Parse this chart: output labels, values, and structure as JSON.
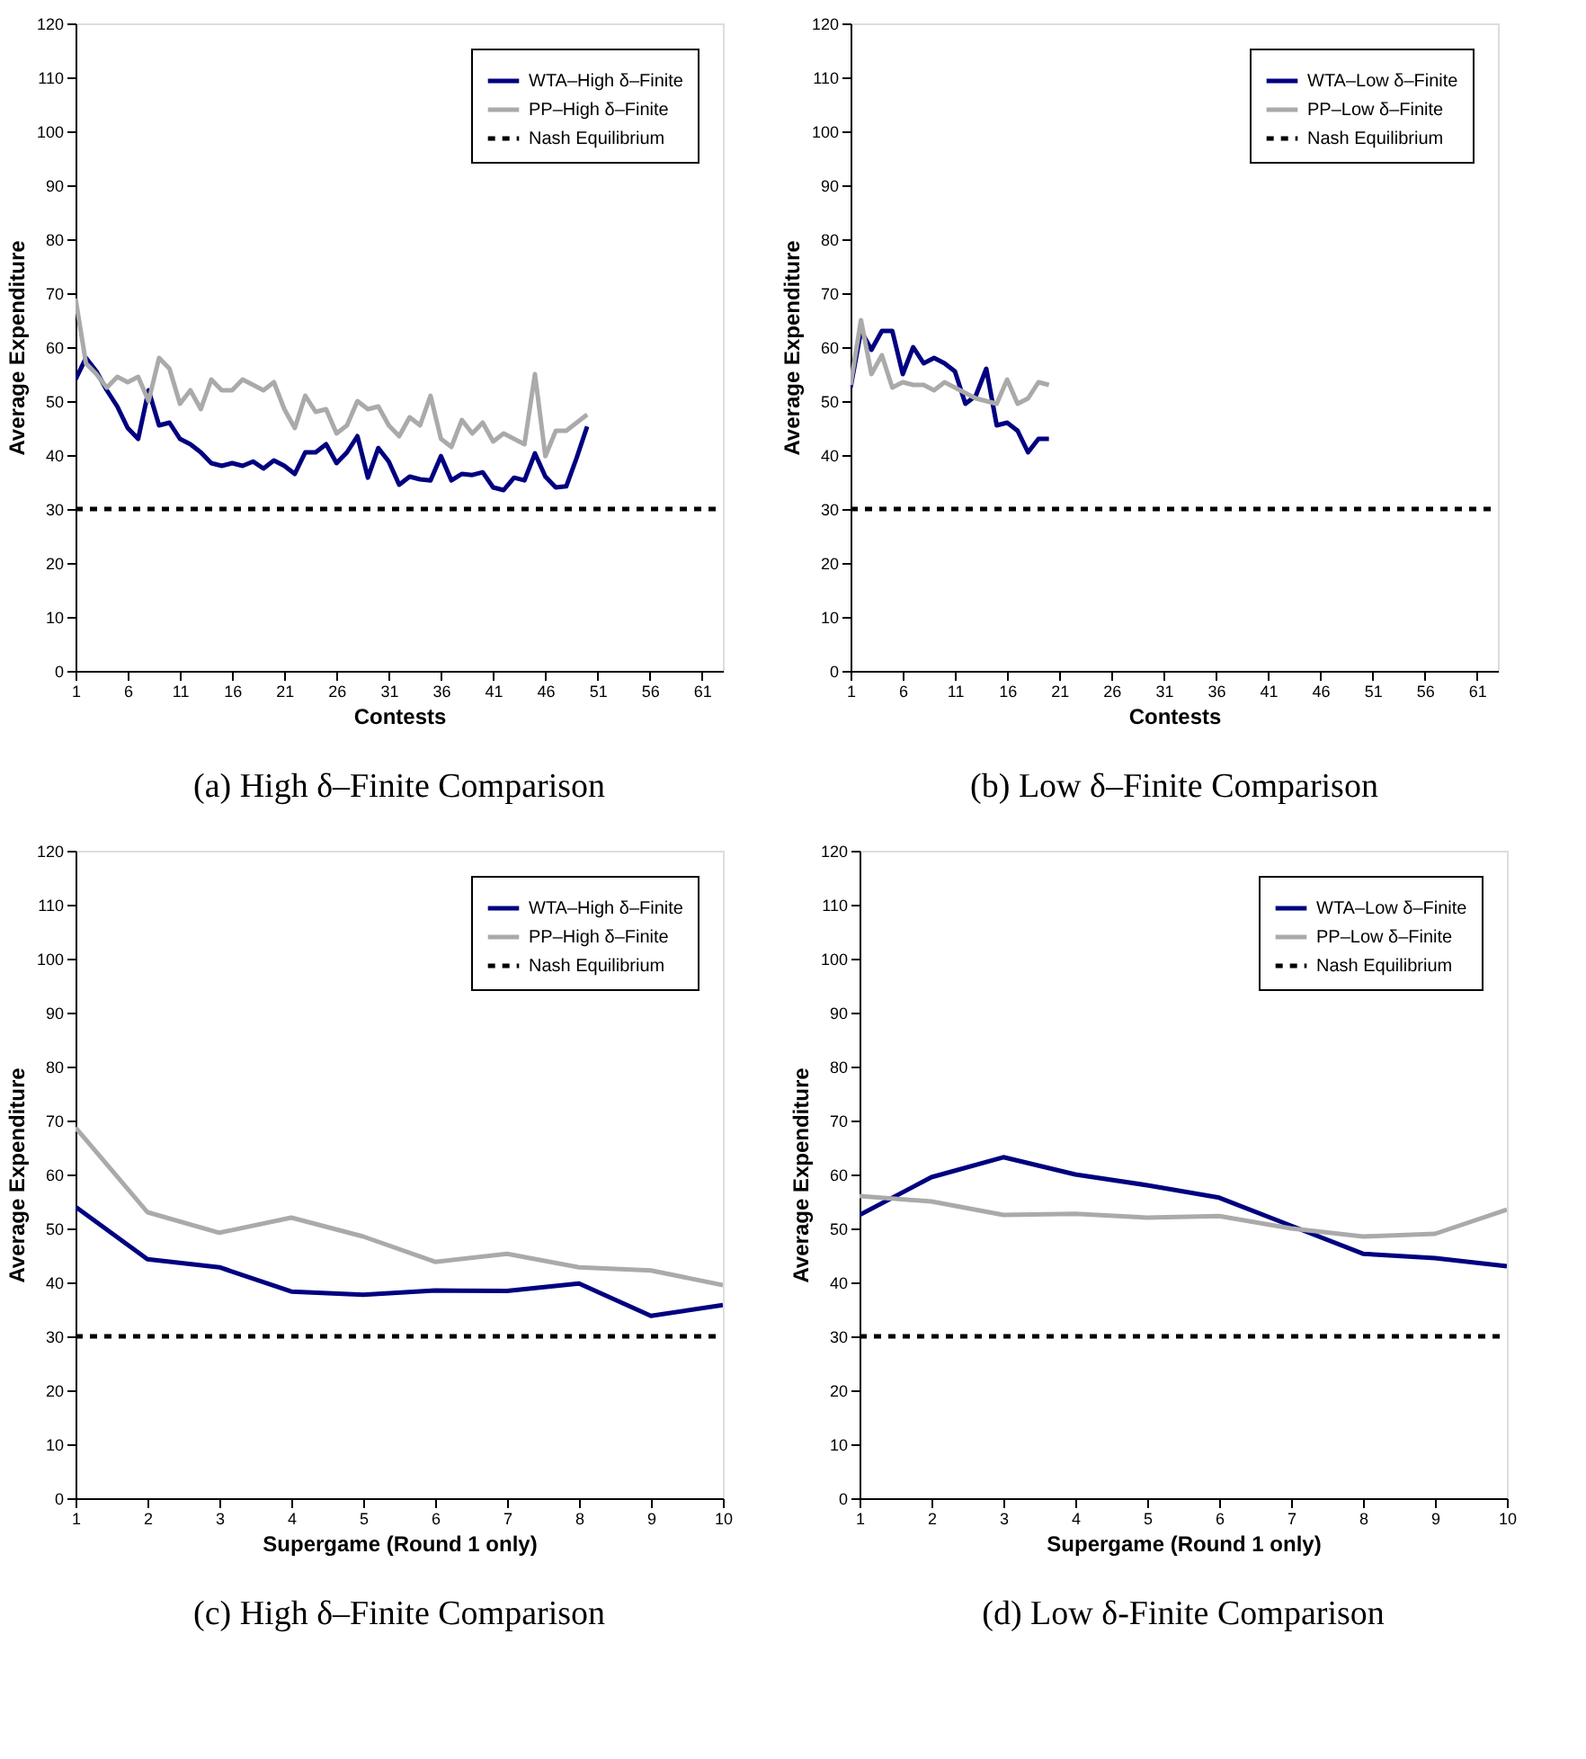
{
  "chart_data": [
    {
      "type": "line",
      "title": "(a) High δ–Finite Comparison",
      "xlabel": "Contests",
      "ylabel": "Average Expenditure",
      "legend": "top right",
      "x": [
        1,
        2,
        3,
        4,
        5,
        6,
        7,
        8,
        9,
        10,
        11,
        12,
        13,
        14,
        15,
        16,
        17,
        18,
        19,
        20,
        21,
        22,
        23,
        24,
        25,
        26,
        27,
        28,
        29,
        30,
        31,
        32,
        33,
        34,
        35,
        36,
        37,
        38,
        39,
        40,
        41,
        42,
        43,
        44,
        45,
        46,
        47,
        48,
        49,
        50
      ],
      "series": [
        {
          "name": "WTA–High δ–Finite",
          "color": "#000080",
          "values": [
            54,
            58,
            55.5,
            52,
            49,
            45,
            43,
            52,
            45.5,
            46,
            43,
            42,
            40.5,
            38.5,
            38,
            38.5,
            38,
            38.8,
            37.5,
            39,
            38,
            36.5,
            40.5,
            40.5,
            42,
            38.5,
            40.5,
            43.5,
            35.8,
            41.3,
            38.8,
            34.5,
            36,
            35.5,
            35.3,
            39.8,
            35.3,
            36.5,
            36.3,
            36.8,
            34,
            33.5,
            35.8,
            35.3,
            40.3,
            36,
            34,
            34.2,
            39.5,
            45.3
          ]
        },
        {
          "name": "PP–High δ–Finite",
          "color": "#aaaaaa",
          "values": [
            69,
            57,
            55,
            52.5,
            54.5,
            53.5,
            54.5,
            50,
            58,
            56,
            49.5,
            52,
            48.5,
            54,
            52,
            52,
            54,
            53,
            52,
            53.5,
            48.5,
            45,
            51,
            48,
            48.5,
            44,
            45.5,
            50,
            48.5,
            49,
            45.5,
            43.5,
            47,
            45.5,
            51,
            43,
            41.5,
            46.5,
            44,
            46,
            42.5,
            44,
            43,
            42,
            55,
            39.8,
            44.5,
            44.5,
            46,
            47.5
          ]
        }
      ],
      "ref_lines": [
        {
          "axis": "y",
          "value": 30,
          "label": "Nash Equilibrium",
          "color": "#000000",
          "line_style": "dashed"
        }
      ],
      "xlim": [
        1,
        63
      ],
      "xticks": [
        1,
        6,
        11,
        16,
        21,
        26,
        31,
        36,
        41,
        46,
        51,
        56,
        61
      ],
      "ylim": [
        0,
        120
      ],
      "yticks": [
        0,
        10,
        20,
        30,
        40,
        50,
        60,
        70,
        80,
        90,
        100,
        110,
        120
      ]
    },
    {
      "type": "line",
      "title": "(b) Low δ–Finite Comparison",
      "xlabel": "Contests",
      "ylabel": "Average Expenditure",
      "legend": "top right",
      "x": [
        1,
        2,
        3,
        4,
        5,
        6,
        7,
        8,
        9,
        10,
        11,
        12,
        13,
        14,
        15,
        16,
        17,
        18,
        19,
        20
      ],
      "series": [
        {
          "name": "WTA–Low δ–Finite",
          "color": "#000080",
          "values": [
            52.5,
            63,
            59.5,
            63,
            63,
            55,
            60,
            57,
            58,
            57,
            55.5,
            49.5,
            51,
            56,
            45.5,
            46,
            44.5,
            40.5,
            43,
            43
          ]
        },
        {
          "name": "PP–Low δ–Finite",
          "color": "#aaaaaa",
          "values": [
            53,
            65,
            55,
            58.5,
            52.5,
            53.5,
            53,
            53,
            52,
            53.5,
            52.5,
            51.5,
            50.5,
            50,
            49.5,
            54,
            49.5,
            50.5,
            53.5,
            53
          ]
        }
      ],
      "ref_lines": [
        {
          "axis": "y",
          "value": 30,
          "label": "Nash Equilibrium",
          "color": "#000000",
          "line_style": "dashed"
        }
      ],
      "xlim": [
        1,
        63
      ],
      "xticks": [
        1,
        6,
        11,
        16,
        21,
        26,
        31,
        36,
        41,
        46,
        51,
        56,
        61
      ],
      "ylim": [
        0,
        120
      ],
      "yticks": [
        0,
        10,
        20,
        30,
        40,
        50,
        60,
        70,
        80,
        90,
        100,
        110,
        120
      ]
    },
    {
      "type": "line",
      "title": "(c) High δ–Finite Comparison",
      "xlabel": "Supergame (Round 1 only)",
      "ylabel": "Average Expenditure",
      "legend": "top right",
      "x": [
        1,
        2,
        3,
        4,
        5,
        6,
        7,
        8,
        9,
        10
      ],
      "series": [
        {
          "name": "WTA–High δ–Finite",
          "color": "#000080",
          "values": [
            54,
            44.3,
            42.8,
            38.3,
            37.7,
            38.5,
            38.4,
            39.8,
            33.8,
            35.8
          ]
        },
        {
          "name": "PP–High δ–Finite",
          "color": "#aaaaaa",
          "values": [
            68.7,
            53,
            49.2,
            52,
            48.5,
            43.8,
            45.3,
            42.8,
            42.2,
            39.5
          ]
        }
      ],
      "ref_lines": [
        {
          "axis": "y",
          "value": 30,
          "label": "Nash Equilibrium",
          "color": "#000000",
          "line_style": "dashed"
        }
      ],
      "xlim": [
        1,
        10
      ],
      "xticks": [
        1,
        2,
        3,
        4,
        5,
        6,
        7,
        8,
        9,
        10
      ],
      "ylim": [
        0,
        120
      ],
      "yticks": [
        0,
        10,
        20,
        30,
        40,
        50,
        60,
        70,
        80,
        90,
        100,
        110,
        120
      ]
    },
    {
      "type": "line",
      "title": "(d) Low δ-Finite Comparison",
      "xlabel": "Supergame (Round 1 only)",
      "ylabel": "Average Expenditure",
      "legend": "top right",
      "x": [
        1,
        2,
        3,
        4,
        5,
        6,
        7,
        8,
        9,
        10
      ],
      "series": [
        {
          "name": "WTA–Low δ–Finite",
          "color": "#000080",
          "values": [
            52.5,
            59.5,
            63.2,
            60,
            58,
            55.7,
            50.5,
            45.3,
            44.5,
            43
          ]
        },
        {
          "name": "PP–Low δ–Finite",
          "color": "#aaaaaa",
          "values": [
            56,
            55,
            52.5,
            52.7,
            52,
            52.3,
            50,
            48.5,
            49,
            53.5
          ]
        }
      ],
      "ref_lines": [
        {
          "axis": "y",
          "value": 30,
          "label": "Nash Equilibrium",
          "color": "#000000",
          "line_style": "dashed"
        }
      ],
      "xlim": [
        1,
        10
      ],
      "xticks": [
        1,
        2,
        3,
        4,
        5,
        6,
        7,
        8,
        9,
        10
      ],
      "ylim": [
        0,
        120
      ],
      "yticks": [
        0,
        10,
        20,
        30,
        40,
        50,
        60,
        70,
        80,
        90,
        100,
        110,
        120
      ]
    }
  ]
}
